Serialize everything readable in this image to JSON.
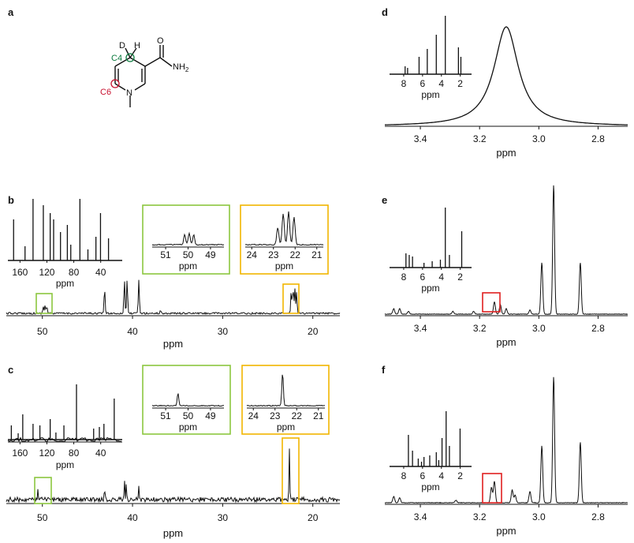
{
  "panels": {
    "a": {
      "label": "a",
      "atoms": {
        "d": "D",
        "h": "H",
        "c4": "C4",
        "c6": "C6",
        "n": "N",
        "nh2": "NH",
        "sub2": "2",
        "o": "O"
      }
    },
    "b": {
      "label": "b"
    },
    "c": {
      "label": "c"
    },
    "d": {
      "label": "d"
    },
    "e": {
      "label": "e"
    },
    "f": {
      "label": "f"
    }
  },
  "colors": {
    "green": "#8cc63f",
    "yellow": "#f2b600",
    "red": "#e02020",
    "c4": "#0b7a3e",
    "c6": "#c8102e"
  },
  "chart_data": [
    {
      "id": "b",
      "type": "line",
      "title": "",
      "xlabel": "ppm",
      "ylabel": "",
      "x_reversed": true,
      "xlim": [
        54,
        17
      ],
      "x_ticks": [
        50,
        40,
        30,
        20
      ],
      "peaks": [
        {
          "ppm": 49.9,
          "h": 0.09
        },
        {
          "ppm": 49.7,
          "h": 0.1
        },
        {
          "ppm": 49.5,
          "h": 0.09
        },
        {
          "ppm": 43.1,
          "h": 0.33
        },
        {
          "ppm": 40.9,
          "h": 0.43
        },
        {
          "ppm": 40.6,
          "h": 0.42
        },
        {
          "ppm": 39.3,
          "h": 0.43
        },
        {
          "ppm": 36.9,
          "h": 0.04
        },
        {
          "ppm": 22.4,
          "h": 0.28
        },
        {
          "ppm": 22.2,
          "h": 0.32
        },
        {
          "ppm": 22.0,
          "h": 0.32
        },
        {
          "ppm": 21.8,
          "h": 0.28
        }
      ],
      "insets": [
        {
          "xlabel": "ppm",
          "x_ticks": [
            160,
            120,
            80,
            40
          ],
          "xlim": [
            178,
            8
          ]
        },
        {
          "xlabel": "ppm",
          "x_ticks": [
            51,
            50,
            49
          ],
          "xlim": [
            51.6,
            48.4
          ]
        },
        {
          "xlabel": "ppm",
          "x_ticks": [
            24,
            23,
            22,
            21
          ],
          "xlim": [
            24.3,
            20.7
          ]
        }
      ]
    },
    {
      "id": "c",
      "type": "line",
      "title": "",
      "xlabel": "ppm",
      "ylabel": "",
      "x_reversed": true,
      "xlim": [
        54,
        17
      ],
      "x_ticks": [
        50,
        40,
        30,
        20
      ],
      "peaks": [
        {
          "ppm": 50.5,
          "h": 0.15
        },
        {
          "ppm": 43.1,
          "h": 0.17
        },
        {
          "ppm": 40.9,
          "h": 0.32
        },
        {
          "ppm": 40.7,
          "h": 0.28
        },
        {
          "ppm": 39.3,
          "h": 0.24
        },
        {
          "ppm": 22.6,
          "h": 0.85
        }
      ],
      "insets": [
        {
          "xlabel": "ppm",
          "x_ticks": [
            160,
            120,
            80,
            40
          ],
          "xlim": [
            178,
            8
          ]
        },
        {
          "xlabel": "ppm",
          "x_ticks": [
            51,
            50,
            49
          ],
          "xlim": [
            51.6,
            48.4
          ]
        },
        {
          "xlabel": "ppm",
          "x_ticks": [
            24,
            23,
            22,
            21
          ],
          "xlim": [
            24.3,
            20.7
          ]
        }
      ]
    },
    {
      "id": "d",
      "type": "line",
      "title": "",
      "xlabel": "ppm",
      "ylabel": "",
      "x_reversed": true,
      "xlim": [
        3.52,
        2.7
      ],
      "x_ticks": [
        3.4,
        3.2,
        3.0,
        2.8
      ],
      "peaks": [
        {
          "ppm": 3.11,
          "h": 0.95,
          "shape": "lorentzian"
        }
      ],
      "insets": [
        {
          "xlabel": "ppm",
          "x_ticks": [
            8,
            6,
            4,
            2
          ],
          "xlim": [
            9.5,
            0.8
          ]
        }
      ]
    },
    {
      "id": "e",
      "type": "line",
      "title": "",
      "xlabel": "ppm",
      "ylabel": "",
      "x_reversed": true,
      "xlim": [
        3.52,
        2.7
      ],
      "x_ticks": [
        3.4,
        3.2,
        3.0,
        2.8
      ],
      "peaks": [
        {
          "ppm": 3.49,
          "h": 0.04
        },
        {
          "ppm": 3.47,
          "h": 0.04
        },
        {
          "ppm": 3.15,
          "h": 0.09
        },
        {
          "ppm": 3.13,
          "h": 0.07
        },
        {
          "ppm": 2.99,
          "h": 0.38
        },
        {
          "ppm": 2.95,
          "h": 0.95
        },
        {
          "ppm": 2.86,
          "h": 0.38
        }
      ],
      "insets": [
        {
          "xlabel": "ppm",
          "x_ticks": [
            8,
            6,
            4,
            2
          ],
          "xlim": [
            9.5,
            0.8
          ]
        }
      ]
    },
    {
      "id": "f",
      "type": "line",
      "title": "",
      "xlabel": "ppm",
      "ylabel": "",
      "x_reversed": true,
      "xlim": [
        3.52,
        2.7
      ],
      "x_ticks": [
        3.4,
        3.2,
        3.0,
        2.8
      ],
      "peaks": [
        {
          "ppm": 3.49,
          "h": 0.05
        },
        {
          "ppm": 3.15,
          "h": 0.17
        },
        {
          "ppm": 3.09,
          "h": 0.1
        },
        {
          "ppm": 3.03,
          "h": 0.09
        },
        {
          "ppm": 2.99,
          "h": 0.45
        },
        {
          "ppm": 2.95,
          "h": 1.0
        },
        {
          "ppm": 2.86,
          "h": 0.48
        }
      ],
      "insets": [
        {
          "xlabel": "ppm",
          "x_ticks": [
            8,
            6,
            4,
            2
          ],
          "xlim": [
            9.5,
            0.8
          ]
        }
      ]
    }
  ]
}
